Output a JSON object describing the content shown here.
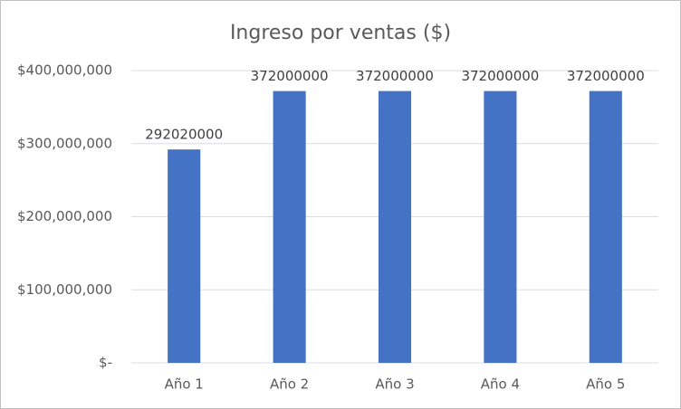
{
  "chart_data": {
    "type": "bar",
    "title": "Ingreso por ventas ($)",
    "categories": [
      "Año 1",
      "Año 2",
      "Año 3",
      "Año 4",
      "Año 5"
    ],
    "values": [
      292020000,
      372000000,
      372000000,
      372000000,
      372000000
    ],
    "color": "#4472c4",
    "ylim": [
      0,
      400000000
    ],
    "yticks": [
      {
        "value": 0,
        "label": "$-"
      },
      {
        "value": 100000000,
        "label": "$100,000,000"
      },
      {
        "value": 200000000,
        "label": "$200,000,000"
      },
      {
        "value": 300000000,
        "label": "$300,000,000"
      },
      {
        "value": 400000000,
        "label": "$400,000,000"
      }
    ],
    "grid": true
  }
}
